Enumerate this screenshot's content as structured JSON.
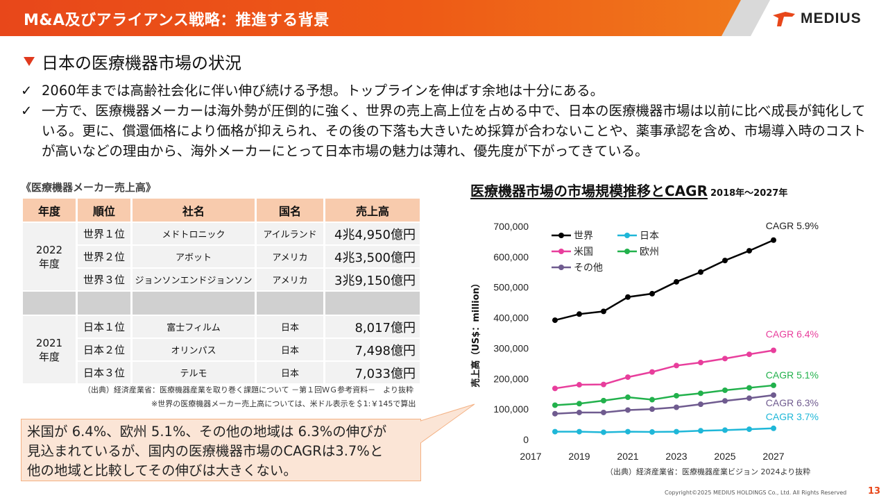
{
  "header": {
    "title": "M&A及びアライアンス戦略：推進する背景",
    "logo_text": "MEDIUS"
  },
  "subheading": "日本の医療機器市場の状況",
  "bullets": [
    "2060年までは高齢社会化に伴い伸び続ける予想。トップラインを伸ばす余地は十分にある。",
    "一方で、医療機器メーカーは海外勢が圧倒的に強く、世界の売上高上位を占める中で、日本の医療機器市場は以前に比べ成長が鈍化している。更に、償還価格により価格が抑えられ、その後の下落も大きいため採算が合わないことや、薬事承認を含め、市場導入時のコストが高いなどの理由から、海外メーカーにとって日本市場の魅力は薄れ、優先度が下がってきている。"
  ],
  "table": {
    "title": "《医療機器メーカー売上高》",
    "headers": [
      "年度",
      "順位",
      "社名",
      "国名",
      "売上高"
    ],
    "group1_year": [
      "2022",
      "年度"
    ],
    "group1": [
      [
        "世界１位",
        "メドトロニック",
        "アイルランド",
        "4兆4,950億円"
      ],
      [
        "世界２位",
        "アボット",
        "アメリカ",
        "4兆3,500億円"
      ],
      [
        "世界３位",
        "ジョンソンエンドジョンソン",
        "アメリカ",
        "3兆9,150億円"
      ]
    ],
    "group2_year": [
      "2021",
      "年度"
    ],
    "group2": [
      [
        "日本１位",
        "富士フィルム",
        "日本",
        "8,017億円"
      ],
      [
        "日本２位",
        "オリンパス",
        "日本",
        "7,498億円"
      ],
      [
        "日本３位",
        "テルモ",
        "日本",
        "7,033億円"
      ]
    ],
    "source": "（出典）経済産業省：医療機器産業を取り巻く課題について －第１回ＷＧ参考資料－　より抜粋",
    "note": "※世界の医療機器メーカー売上高については、米ドル表示を＄1:￥145で算出"
  },
  "callout": {
    "lines": [
      "米国が 6.4%、欧州 5.1%、その他の地域は 6.3%の伸びが",
      "見込まれているが、国内の医療機器市場のCAGRは3.7%と",
      "他の地域と比較してその伸びは大きくない。"
    ]
  },
  "chart_title": {
    "main": "医療機器市場の市場規模推移とCAGR",
    "sub": "2018年～2027年"
  },
  "chart_source": "（出典）経済産業省：医療機器産業ビジョン 2024より抜粋",
  "chart_data": {
    "type": "line",
    "ylabel": "売上高（US$：million）",
    "xlim": [
      2017,
      2027
    ],
    "ylim": [
      0,
      700000
    ],
    "x_ticks": [
      2017,
      2019,
      2021,
      2023,
      2025,
      2027
    ],
    "x_tick_labels": [
      "2017",
      "2019",
      "2021",
      "2023",
      "2025",
      "2027"
    ],
    "y_ticks": [
      0,
      100000,
      200000,
      300000,
      400000,
      500000,
      600000,
      700000
    ],
    "y_tick_labels": [
      "0",
      "100,000",
      "200,000",
      "300,000",
      "400,000",
      "500,000",
      "600,000",
      "700,000"
    ],
    "x": [
      2018,
      2019,
      2020,
      2021,
      2022,
      2023,
      2024,
      2025,
      2026,
      2027
    ],
    "legend_position": "top-left",
    "series": [
      {
        "name": "世界",
        "color": "#000000",
        "cagr": "CAGR 5.9%",
        "values": [
          392000,
          412000,
          421000,
          468000,
          479000,
          518000,
          550000,
          588000,
          620000,
          655000
        ]
      },
      {
        "name": "日本",
        "color": "#1fb7d8",
        "cagr": "CAGR 3.7%",
        "values": [
          26000,
          26000,
          24000,
          26000,
          25000,
          26000,
          29000,
          31000,
          34000,
          37000
        ]
      },
      {
        "name": "米国",
        "color": "#e83e9c",
        "cagr": "CAGR 6.4%",
        "values": [
          168000,
          180000,
          181000,
          205000,
          222000,
          243000,
          253000,
          266000,
          280000,
          293000
        ]
      },
      {
        "name": "欧州",
        "color": "#22b14c",
        "cagr": "CAGR 5.1%",
        "values": [
          113000,
          118000,
          128000,
          139000,
          131000,
          144000,
          152000,
          162000,
          170000,
          178000
        ]
      },
      {
        "name": "その他",
        "color": "#6f5b8f",
        "cagr": "CAGR 6.3%",
        "values": [
          85000,
          89000,
          89000,
          97000,
          100000,
          106000,
          116000,
          127000,
          136000,
          146000
        ]
      }
    ]
  },
  "copyright": "Copyright©2025 MEDIUS HOLDINGS Co., Ltd. All Rights Reserved",
  "page_number": "13"
}
